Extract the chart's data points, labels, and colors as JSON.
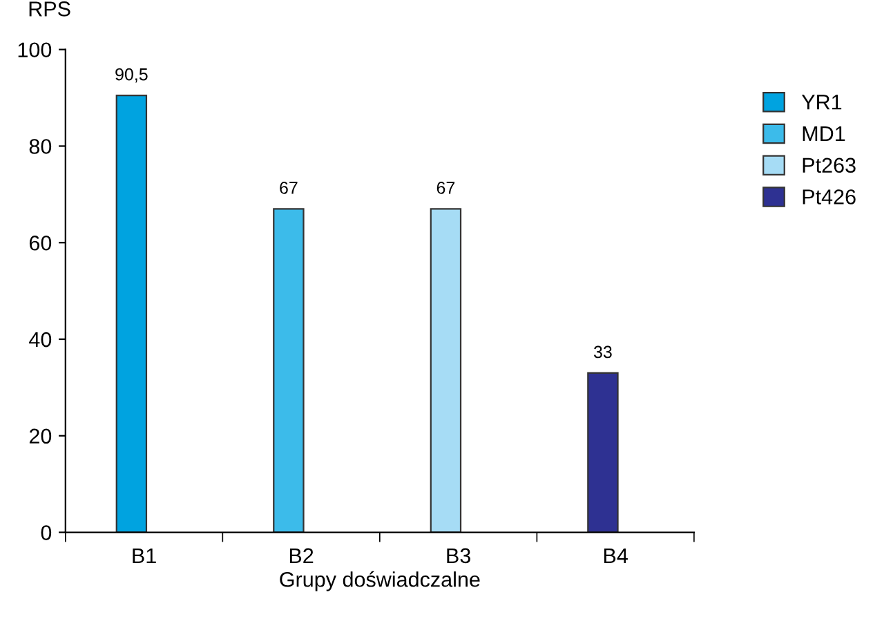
{
  "chart_data": {
    "type": "bar",
    "xlabel": "Grupy doświadczalne",
    "ylabel": "RPS",
    "categories": [
      "B1",
      "B2",
      "B3",
      "B4"
    ],
    "series": [
      {
        "name": "YR1",
        "color": "#00a3e0",
        "values": [
          90.5,
          null,
          null,
          null
        ],
        "value_labels": [
          "90,5",
          null,
          null,
          null
        ]
      },
      {
        "name": "MD1",
        "color": "#3cbbea",
        "values": [
          null,
          67,
          null,
          null
        ],
        "value_labels": [
          null,
          "67",
          null,
          null
        ]
      },
      {
        "name": "Pt263",
        "color": "#a6dcf5",
        "values": [
          null,
          null,
          67,
          null
        ],
        "value_labels": [
          null,
          null,
          "67",
          null
        ]
      },
      {
        "name": "Pt426",
        "color": "#2e3192",
        "values": [
          null,
          null,
          null,
          33
        ],
        "value_labels": [
          null,
          null,
          null,
          "33"
        ]
      }
    ],
    "ylim": [
      0,
      100
    ],
    "yticks": [
      0,
      20,
      40,
      60,
      80,
      100
    ],
    "grid": false,
    "legend": "right"
  }
}
